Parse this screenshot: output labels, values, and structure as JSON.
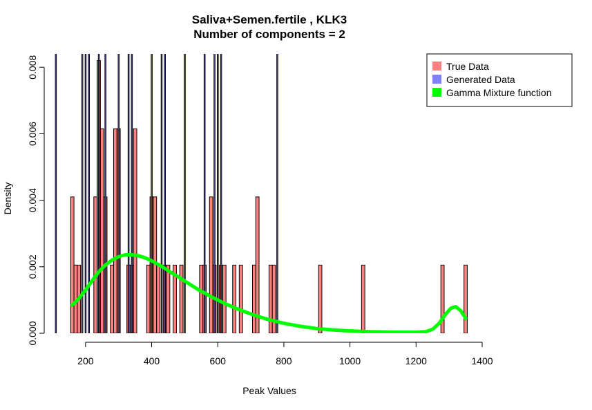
{
  "chart_data": {
    "type": "bar",
    "title": "Saliva+Semen.fertile , KLK3",
    "subtitle": "Number of components =  2",
    "xlabel": "Peak Values",
    "ylabel": "Density",
    "xlim": [
      100,
      1400
    ],
    "ylim": [
      0,
      0.0084
    ],
    "x_ticks": [
      {
        "value": 200,
        "label": "200"
      },
      {
        "value": 400,
        "label": "400"
      },
      {
        "value": 600,
        "label": "600"
      },
      {
        "value": 800,
        "label": "800"
      },
      {
        "value": 1000,
        "label": "1000"
      },
      {
        "value": 1200,
        "label": "1200"
      },
      {
        "value": 1400,
        "label": "1400"
      }
    ],
    "y_ticks": [
      {
        "value": 0.0,
        "label": "0.000"
      },
      {
        "value": 0.002,
        "label": "0.002"
      },
      {
        "value": 0.004,
        "label": "0.004"
      },
      {
        "value": 0.006,
        "label": "0.006"
      },
      {
        "value": 0.008,
        "label": "0.008"
      }
    ],
    "bin_width": 10,
    "legend": {
      "position": "top-right",
      "entries": [
        {
          "label": "True Data",
          "color": "#ff8080"
        },
        {
          "label": "Generated Data",
          "color": "#8080ff"
        },
        {
          "label": "Gamma Mixture function",
          "color": "#00ff00"
        }
      ]
    },
    "series": [
      {
        "name": "True Data",
        "color": "#ff8080",
        "bins": [
          {
            "x": 160,
            "y": 0.0041
          },
          {
            "x": 170,
            "y": 0.00205
          },
          {
            "x": 180,
            "y": 0.00205
          },
          {
            "x": 230,
            "y": 0.0041
          },
          {
            "x": 240,
            "y": 0.0082
          },
          {
            "x": 250,
            "y": 0.00615
          },
          {
            "x": 260,
            "y": 0.0041
          },
          {
            "x": 280,
            "y": 0.00205
          },
          {
            "x": 290,
            "y": 0.00615
          },
          {
            "x": 300,
            "y": 0.00615
          },
          {
            "x": 330,
            "y": 0.00205
          },
          {
            "x": 340,
            "y": 0.00205
          },
          {
            "x": 350,
            "y": 0.00615
          },
          {
            "x": 390,
            "y": 0.00205
          },
          {
            "x": 400,
            "y": 0.0041
          },
          {
            "x": 410,
            "y": 0.0041
          },
          {
            "x": 420,
            "y": 0.00205
          },
          {
            "x": 440,
            "y": 0.00205
          },
          {
            "x": 450,
            "y": 0.00205
          },
          {
            "x": 470,
            "y": 0.00205
          },
          {
            "x": 490,
            "y": 0.00205
          },
          {
            "x": 550,
            "y": 0.00205
          },
          {
            "x": 560,
            "y": 0.00205
          },
          {
            "x": 580,
            "y": 0.0041
          },
          {
            "x": 590,
            "y": 0.00205
          },
          {
            "x": 610,
            "y": 0.00205
          },
          {
            "x": 620,
            "y": 0.00205
          },
          {
            "x": 650,
            "y": 0.00205
          },
          {
            "x": 670,
            "y": 0.00205
          },
          {
            "x": 710,
            "y": 0.00205
          },
          {
            "x": 720,
            "y": 0.0041
          },
          {
            "x": 760,
            "y": 0.00205
          },
          {
            "x": 770,
            "y": 0.00205
          },
          {
            "x": 910,
            "y": 0.00205
          },
          {
            "x": 1040,
            "y": 0.00205
          },
          {
            "x": 1280,
            "y": 0.00205
          },
          {
            "x": 1350,
            "y": 0.00205
          }
        ]
      },
      {
        "name": "Generated Data",
        "color": "#8080ff",
        "bins": [
          {
            "x": 110,
            "y": 0.02
          },
          {
            "x": 190,
            "y": 0.02
          },
          {
            "x": 200,
            "y": 0.02
          },
          {
            "x": 210,
            "y": 0.02
          },
          {
            "x": 240,
            "y": 0.02
          },
          {
            "x": 260,
            "y": 0.02
          },
          {
            "x": 300,
            "y": 0.02
          },
          {
            "x": 330,
            "y": 0.02
          },
          {
            "x": 340,
            "y": 0.02
          },
          {
            "x": 400,
            "y": 0.02
          },
          {
            "x": 430,
            "y": 0.02
          },
          {
            "x": 440,
            "y": 0.02
          },
          {
            "x": 500,
            "y": 0.02
          },
          {
            "x": 560,
            "y": 0.02
          },
          {
            "x": 590,
            "y": 0.02
          },
          {
            "x": 600,
            "y": 0.02
          },
          {
            "x": 610,
            "y": 0.02
          },
          {
            "x": 780,
            "y": 0.02
          }
        ]
      },
      {
        "name": "Gamma Mixture function",
        "color": "#00ff00",
        "type": "line",
        "x": [
          160,
          180,
          200,
          220,
          240,
          260,
          280,
          300,
          320,
          340,
          360,
          380,
          400,
          420,
          440,
          460,
          480,
          500,
          540,
          580,
          620,
          660,
          700,
          750,
          800,
          850,
          900,
          950,
          1000,
          1050,
          1100,
          1150,
          1200,
          1230,
          1250,
          1270,
          1290,
          1305,
          1320,
          1335,
          1350
        ],
        "y": [
          0.00085,
          0.00105,
          0.0013,
          0.00158,
          0.00185,
          0.00205,
          0.0022,
          0.0023,
          0.00236,
          0.00236,
          0.00233,
          0.00227,
          0.00218,
          0.00207,
          0.00195,
          0.00182,
          0.0017,
          0.00157,
          0.00132,
          0.0011,
          0.0009,
          0.00073,
          0.00058,
          0.00042,
          0.0003,
          0.00021,
          0.00014,
          0.0001,
          7e-05,
          5e-05,
          4e-05,
          3e-05,
          3e-05,
          5e-05,
          0.00012,
          0.0003,
          0.00058,
          0.00075,
          0.0008,
          0.00068,
          0.00045
        ]
      }
    ]
  }
}
